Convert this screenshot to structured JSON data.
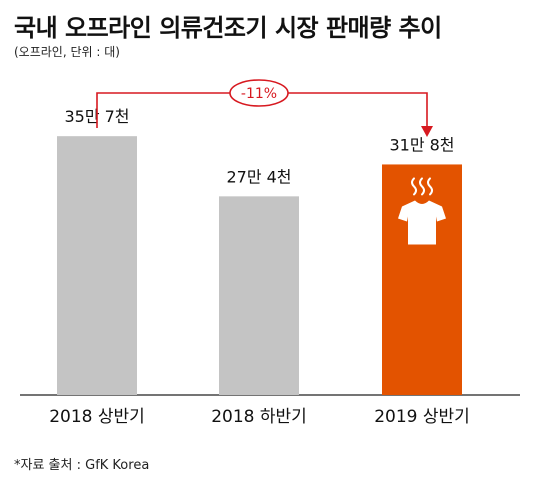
{
  "title": "국내 오프라인 의류건조기 시장 판매량 추이",
  "subtitle": "(오프라인, 단위 : 대)",
  "source": "*자료 출처 : GfK Korea",
  "colors": {
    "gray": "#c4c4c4",
    "highlight": "#e35300",
    "arrow": "#d71920"
  },
  "icon": "shirt-with-steam-icon",
  "chart_data": {
    "type": "bar",
    "categories": [
      "2018 상반기",
      "2018 하반기",
      "2019 상반기"
    ],
    "values": [
      357000,
      274000,
      318000
    ],
    "data_labels": [
      "35만 7천",
      "27만 4천",
      "31만 8천"
    ],
    "highlight_index": 2,
    "change_label": "-11%",
    "ylim": [
      0,
      400000
    ],
    "grid": false,
    "legend": "none"
  }
}
